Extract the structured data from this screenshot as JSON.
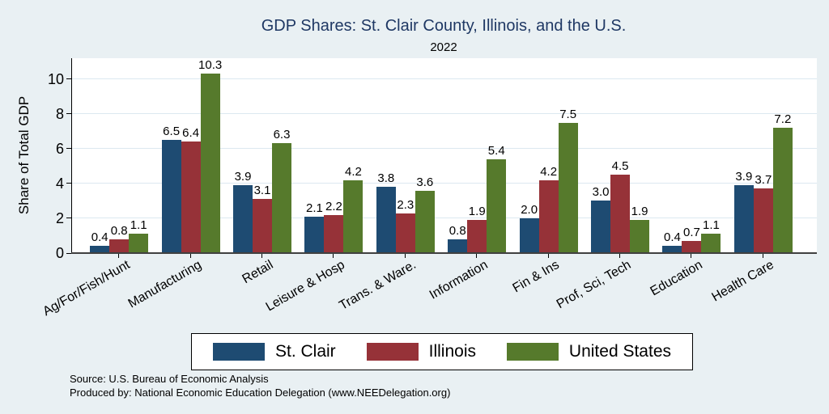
{
  "header": {
    "title": "GDP Shares: St. Clair County, Illinois, and the U.S.",
    "subtitle": "2022"
  },
  "colors": {
    "background": "#e9f0f3",
    "plot_background": "#ffffff",
    "title": "#1f3864",
    "gridline": "#dce8f0",
    "st_clair": "#1e4b72",
    "illinois": "#963238",
    "united_states": "#567a2c"
  },
  "footer": {
    "source": "Source: U.S. Bureau of Economic Analysis",
    "produced_by": "Produced by: National Economic Education Delegation (www.NEEDelegation.org)"
  },
  "chart_data": {
    "type": "bar",
    "title": "GDP Shares: St. Clair County, Illinois, and the U.S.",
    "subtitle": "2022",
    "xlabel": "",
    "ylabel": "Share of Total GDP",
    "categories": [
      "Ag/For/Fish/Hunt",
      "Manufacturing",
      "Retail",
      "Leisure & Hosp",
      "Trans. & Ware.",
      "Information",
      "Fin & Ins",
      "Prof, Sci, Tech",
      "Education",
      "Health Care"
    ],
    "series": [
      {
        "name": "St. Clair",
        "color": "#1e4b72",
        "values": [
          0.4,
          6.5,
          3.9,
          2.1,
          3.8,
          0.8,
          2.0,
          3.0,
          0.4,
          3.9
        ]
      },
      {
        "name": "Illinois",
        "color": "#963238",
        "values": [
          0.8,
          6.4,
          3.1,
          2.2,
          2.3,
          1.9,
          4.2,
          4.5,
          0.7,
          3.7
        ]
      },
      {
        "name": "United States",
        "color": "#567a2c",
        "values": [
          1.1,
          10.3,
          6.3,
          4.2,
          3.6,
          5.4,
          7.5,
          1.9,
          1.1,
          7.2
        ]
      }
    ],
    "value_labels": true,
    "value_label_format": "0.1f",
    "yticks": [
      0,
      2,
      4,
      6,
      8,
      10
    ],
    "ylim": [
      0,
      11.2
    ],
    "grid": true,
    "legend_position": "bottom"
  }
}
